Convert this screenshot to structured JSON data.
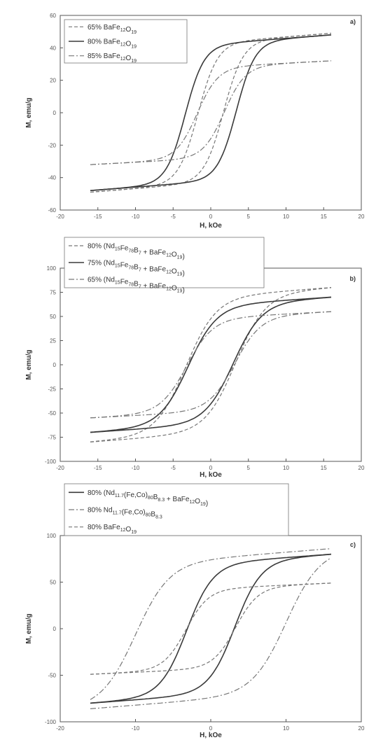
{
  "figure": {
    "colors": {
      "axis": "#555555",
      "curve": "#3a3a3a",
      "curve_light": "#777777",
      "legend_border": "#777777"
    }
  },
  "chart_data": [
    {
      "type": "line",
      "panel_label": "a)",
      "xlabel": "H, kOe",
      "ylabel": "M, emu/g",
      "xlim": [
        -20,
        20
      ],
      "ylim": [
        -60,
        60
      ],
      "xticks": [
        -20,
        -15,
        -10,
        -5,
        0,
        5,
        10,
        15,
        20
      ],
      "yticks": [
        -60,
        -40,
        -20,
        0,
        20,
        40,
        60
      ],
      "grid": false,
      "legend_position": "top-left",
      "series": [
        {
          "name": "65% BaFe12O19",
          "style": "dash",
          "branches": [
            {
              "Ms": 49,
              "Mr": 18,
              "Hc": 1.7,
              "a": 2.6,
              "b": 1.15
            },
            {
              "Ms": 49,
              "Mr": 18,
              "Hc": 1.7,
              "a": 2.6,
              "b": 1.15
            }
          ]
        },
        {
          "name": "80% BaFe12O19",
          "style": "solid",
          "branches": [
            {
              "Ms": 48,
              "Mr": 22,
              "Hc": 3.4,
              "a": 2.5,
              "b": 0.75
            }
          ]
        },
        {
          "name": "85% BaFe12O19",
          "style": "dashdot",
          "branches": [
            {
              "Ms": 32,
              "Mr": 15,
              "Hc": 1.8,
              "a": 2.8,
              "b": 1.1
            }
          ]
        }
      ]
    },
    {
      "type": "line",
      "panel_label": "b)",
      "xlabel": "H, kOe",
      "ylabel": "M, emu/g",
      "xlim": [
        -20,
        20
      ],
      "ylim": [
        -100,
        100
      ],
      "xticks": [
        -20,
        -15,
        -10,
        -5,
        0,
        5,
        10,
        15,
        20
      ],
      "yticks": [
        -100,
        -75,
        -50,
        -25,
        0,
        25,
        50,
        75,
        100
      ],
      "grid": false,
      "legend_position": "top-left",
      "series": [
        {
          "name": "80% (Nd15Fe78B7 + BaFe12O19)",
          "style": "dash",
          "branches": [
            {
              "Ms": 80,
              "Mr": 47,
              "Hc": 3.3,
              "a": 4.0,
              "b": 2.2
            }
          ]
        },
        {
          "name": "75% (Nd15Fe78B7 + BaFe12O19)",
          "style": "solid",
          "branches": [
            {
              "Ms": 70,
              "Mr": 40,
              "Hc": 3.0,
              "a": 3.8,
              "b": 2.2
            }
          ]
        },
        {
          "name": "65% (Nd15Fe78B7 + BaFe12O19)",
          "style": "dashdot",
          "branches": [
            {
              "Ms": 55,
              "Mr": 28,
              "Hc": 3.2,
              "a": 3.5,
              "b": 2.4
            }
          ]
        }
      ]
    },
    {
      "type": "line",
      "panel_label": "c)",
      "xlabel": "H, kOe",
      "ylabel": "M, emu/g",
      "xlim": [
        -20,
        20
      ],
      "ylim": [
        -100,
        100
      ],
      "xticks": [
        -20,
        -10,
        0,
        10,
        20
      ],
      "yticks": [
        -100,
        -50,
        0,
        50,
        100
      ],
      "grid": false,
      "legend_position": "top-left",
      "series": [
        {
          "name": "80% (Nd11.7(Fe,Co)80B8.3 + BaFe12O19)",
          "style": "solid",
          "branches": [
            {
              "Ms": 80,
              "Mr": 40,
              "Hc": 3.2,
              "a": 3.5,
              "b": 2.3
            }
          ]
        },
        {
          "name": "80% Nd11.7(Fe,Co)80B8.3",
          "style": "dashdot",
          "branches": [
            {
              "Ms": 86,
              "Mr": 63,
              "Hc": 10.0,
              "a": 4.5,
              "b": 1.3
            }
          ]
        },
        {
          "name": "80% BaFe12O19",
          "style": "dash",
          "branches": [
            {
              "Ms": 49,
              "Mr": 28,
              "Hc": 3.3,
              "a": 3.0,
              "b": 1.3
            }
          ]
        }
      ]
    }
  ]
}
